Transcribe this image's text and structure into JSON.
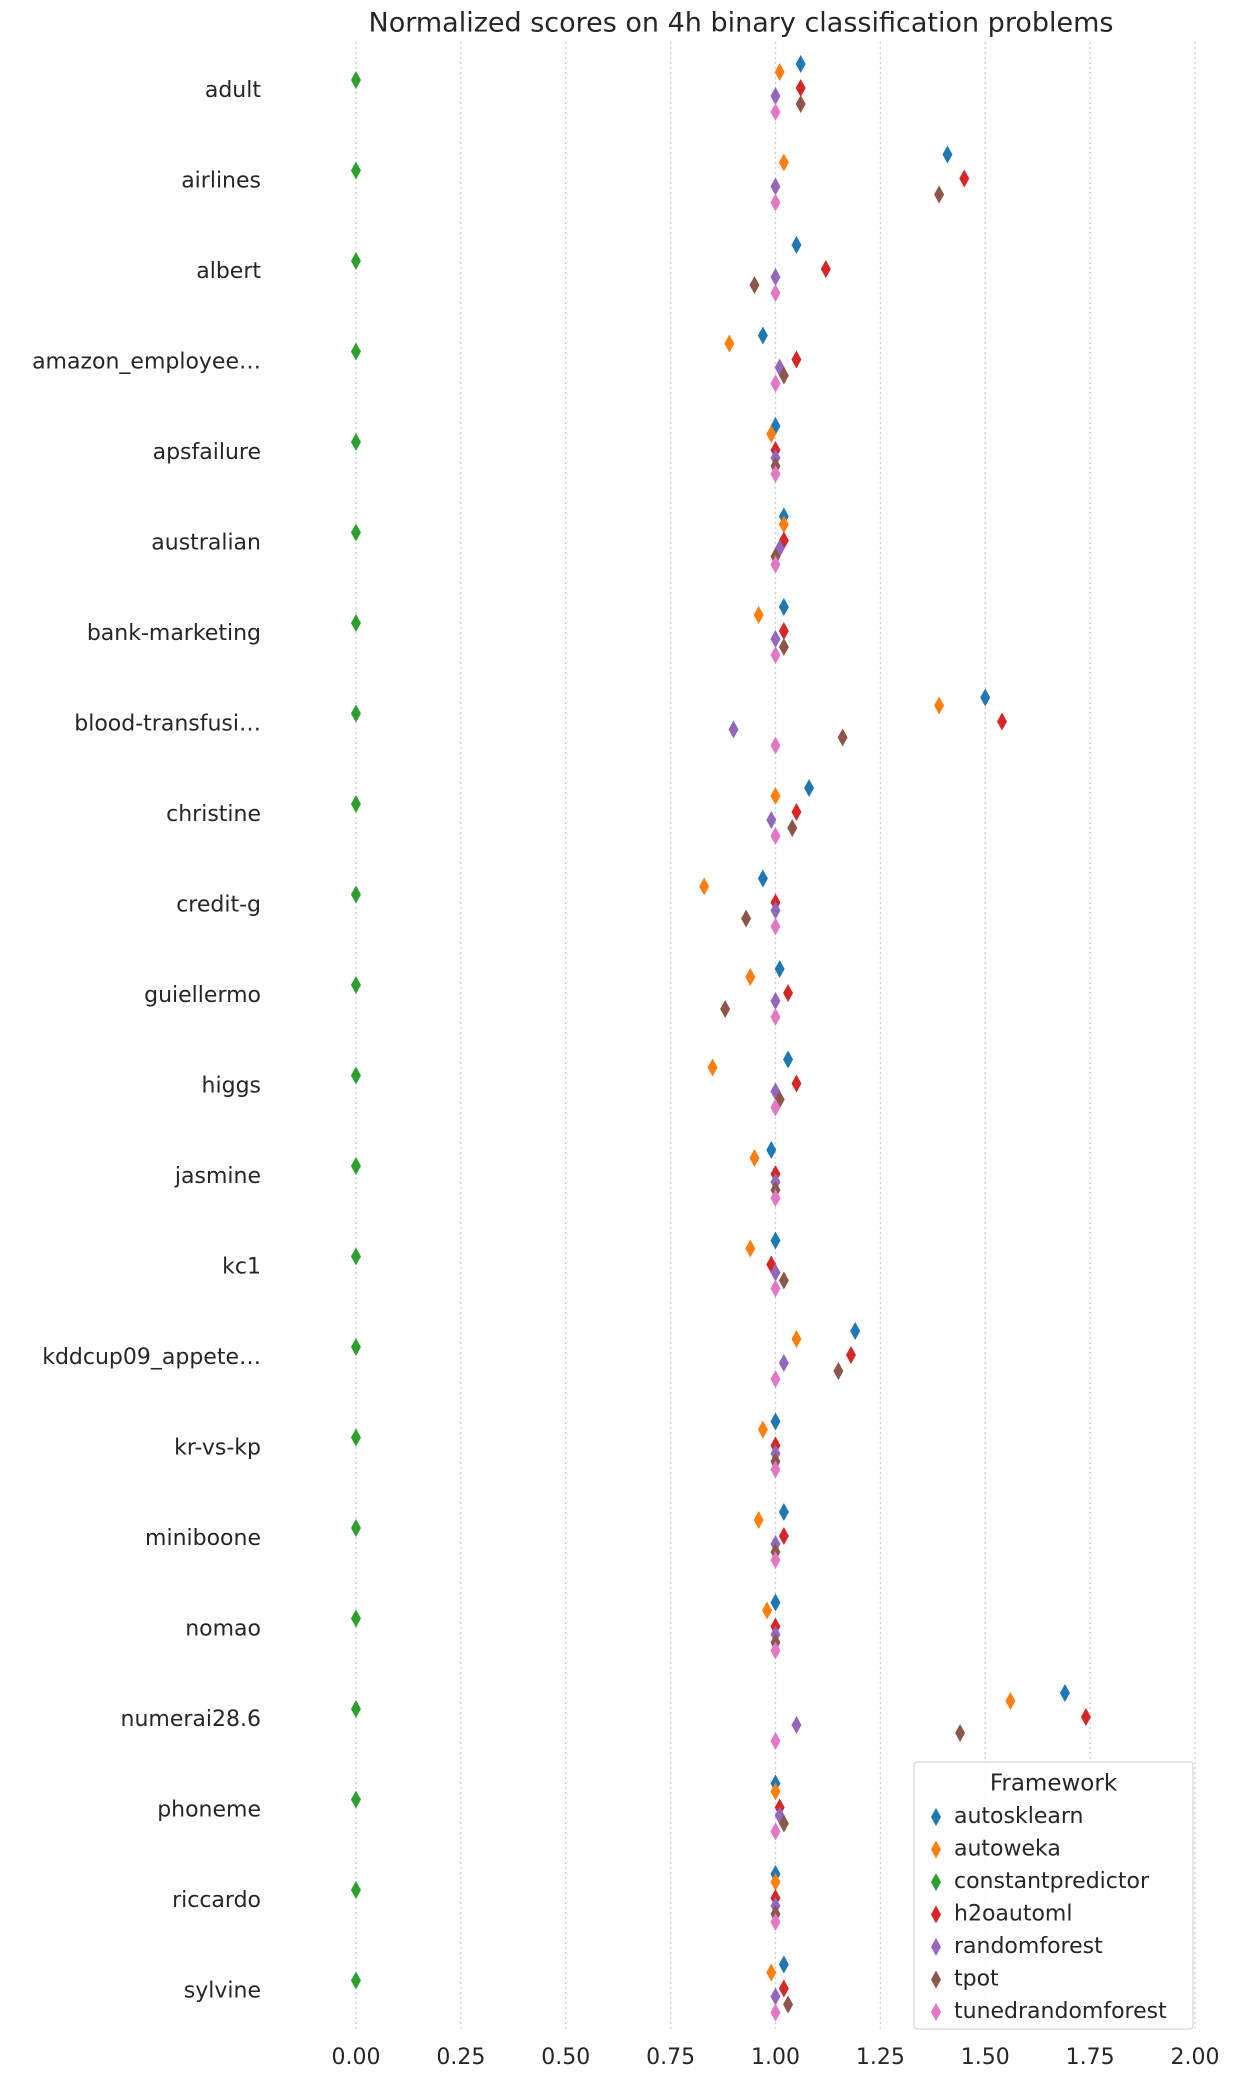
{
  "chart_data": {
    "type": "strip",
    "title": "Normalized scores on 4h binary classification problems",
    "categories": [
      "adult",
      "airlines",
      "albert",
      "amazon_employee…",
      "apsfailure",
      "australian",
      "bank-marketing",
      "blood-transfusi…",
      "christine",
      "credit-g",
      "guiellermo",
      "higgs",
      "jasmine",
      "kc1",
      "kddcup09_appete…",
      "kr-vs-kp",
      "miniboone",
      "nomao",
      "numerai28.6",
      "phoneme",
      "riccardo",
      "sylvine"
    ],
    "series": [
      {
        "name": "autosklearn",
        "color": "#1f77b4",
        "values": [
          1.06,
          1.41,
          1.05,
          0.97,
          1.0,
          1.02,
          1.02,
          1.5,
          1.08,
          0.97,
          1.01,
          1.03,
          0.99,
          1.0,
          1.19,
          1.0,
          1.02,
          1.0,
          1.69,
          1.0,
          1.0,
          1.02
        ]
      },
      {
        "name": "autoweka",
        "color": "#ff7f0e",
        "values": [
          1.01,
          1.02,
          null,
          0.89,
          0.99,
          1.02,
          0.96,
          1.39,
          1.0,
          0.83,
          0.94,
          0.85,
          0.95,
          0.94,
          1.05,
          0.97,
          0.96,
          0.98,
          1.56,
          1.0,
          1.0,
          0.99
        ]
      },
      {
        "name": "constantpredictor",
        "color": "#2ca02c",
        "values": [
          0,
          0,
          0,
          0,
          0,
          0,
          0,
          0,
          0,
          0,
          0,
          0,
          0,
          0,
          0,
          0,
          0,
          0,
          0,
          0,
          0,
          0
        ]
      },
      {
        "name": "h2oautoml",
        "color": "#d62728",
        "values": [
          1.06,
          1.45,
          1.12,
          1.05,
          1.0,
          1.02,
          1.02,
          1.54,
          1.05,
          1.0,
          1.03,
          1.05,
          1.0,
          0.99,
          1.18,
          1.0,
          1.02,
          1.0,
          1.74,
          1.01,
          1.0,
          1.02
        ]
      },
      {
        "name": "randomforest",
        "color": "#9467bd",
        "values": [
          1.0,
          1.0,
          1.0,
          1.01,
          1.0,
          1.01,
          1.0,
          0.9,
          0.99,
          1.0,
          1.0,
          1.0,
          1.0,
          1.0,
          1.02,
          1.0,
          1.0,
          1.0,
          1.05,
          1.01,
          1.0,
          1.0
        ]
      },
      {
        "name": "tpot",
        "color": "#8c564b",
        "values": [
          1.06,
          1.39,
          0.95,
          1.02,
          1.0,
          1.0,
          1.02,
          1.16,
          1.04,
          0.93,
          0.88,
          1.01,
          1.0,
          1.02,
          1.15,
          1.0,
          1.0,
          1.0,
          1.44,
          1.02,
          1.0,
          1.03
        ]
      },
      {
        "name": "tunedrandomforest",
        "color": "#e377c2",
        "values": [
          1.0,
          1.0,
          1.0,
          1.0,
          1.0,
          1.0,
          1.0,
          1.0,
          1.0,
          1.0,
          1.0,
          1.0,
          1.0,
          1.0,
          1.0,
          1.0,
          1.0,
          1.0,
          1.0,
          1.0,
          1.0,
          1.0
        ]
      }
    ],
    "xlim": [
      -0.1,
      2.0
    ],
    "xticks": [
      {
        "value": 0,
        "label": "0.00"
      },
      {
        "value": 0.25,
        "label": "0.25"
      },
      {
        "value": 0.5,
        "label": "0.50"
      },
      {
        "value": 0.75,
        "label": "0.75"
      },
      {
        "value": 1,
        "label": "1.00"
      },
      {
        "value": 1.25,
        "label": "1.25"
      },
      {
        "value": 1.5,
        "label": "1.50"
      },
      {
        "value": 1.75,
        "label": "1.75"
      },
      {
        "value": 2,
        "label": "2.00"
      }
    ],
    "grid": true,
    "legend_title": "Framework",
    "legend": "lower right"
  }
}
